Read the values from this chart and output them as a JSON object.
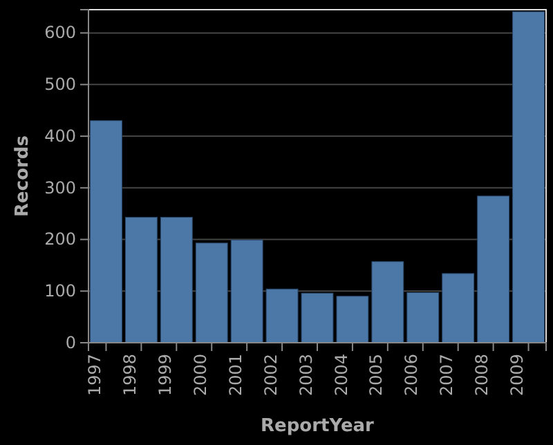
{
  "chart_data": {
    "type": "bar",
    "xlabel": "ReportYear",
    "ylabel": "Records",
    "categories": [
      "1997",
      "1998",
      "1999",
      "2000",
      "2001",
      "2002",
      "2003",
      "2004",
      "2005",
      "2006",
      "2007",
      "2008",
      "2009"
    ],
    "values": [
      430,
      243,
      243,
      193,
      199,
      104,
      96,
      90,
      157,
      97,
      134,
      284,
      641
    ],
    "color": "#4c78a8",
    "ylim": [
      0,
      645
    ],
    "yticks": [
      0,
      100,
      200,
      300,
      400,
      500,
      600
    ],
    "grid": "y"
  }
}
